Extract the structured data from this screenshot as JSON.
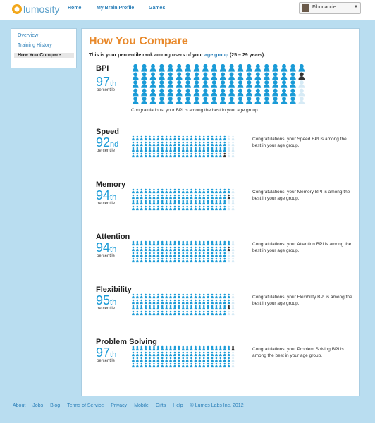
{
  "header": {
    "logo": "lumosity",
    "nav": [
      "Home",
      "My Brain Profile",
      "Games"
    ],
    "user": "Fibonaccie"
  },
  "sidebar": {
    "items": [
      "Overview",
      "Training History",
      "How You Compare"
    ],
    "active": 2
  },
  "main": {
    "title": "How You Compare",
    "intro": {
      "before": "This is your percentile rank among users of your ",
      "link": "age group",
      "after": " (25 – 29 years)."
    },
    "sections": [
      {
        "name": "BPI",
        "percentile": 97,
        "suffix": "th",
        "unit": "percentile",
        "message": "Congratulations, your BPI is among the best in your age group."
      },
      {
        "name": "Speed",
        "percentile": 92,
        "suffix": "nd",
        "unit": "percentile",
        "message": "Congratulations, your Speed BPI is among the best in your age group."
      },
      {
        "name": "Memory",
        "percentile": 94,
        "suffix": "th",
        "unit": "percentile",
        "message": "Congratulations, your Memory BPI is among the best in your age group."
      },
      {
        "name": "Attention",
        "percentile": 94,
        "suffix": "th",
        "unit": "percentile",
        "message": "Congratulations, your Attention BPI is among the best in your age group."
      },
      {
        "name": "Flexibility",
        "percentile": 95,
        "suffix": "th",
        "unit": "percentile",
        "message": "Congratulations, your Flexibility BPI is among the best in your age group."
      },
      {
        "name": "Problem Solving",
        "percentile": 97,
        "suffix": "th",
        "unit": "percentile",
        "message": "Congratulations, your Problem Solving BPI is among the best in your age group."
      }
    ]
  },
  "footer": {
    "links": [
      "About",
      "Jobs",
      "Blog",
      "Terms of Service",
      "Privacy",
      "Mobile",
      "Gifts",
      "Help"
    ],
    "copyright": "© Lumos Labs Inc. 2012"
  }
}
